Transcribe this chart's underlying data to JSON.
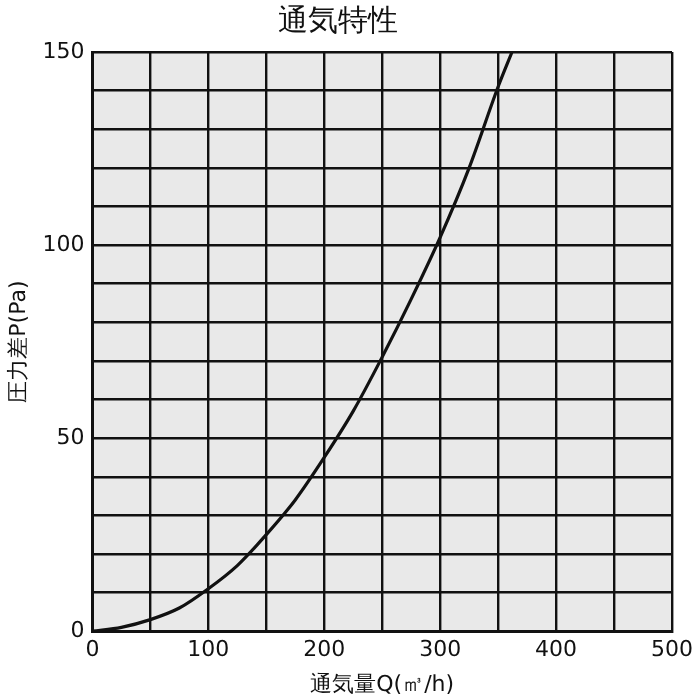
{
  "chart_data": {
    "type": "line",
    "title": "通気特性",
    "xlabel": "通気量Q(㎥/h)",
    "ylabel": "圧力差P(Pa)",
    "x": [
      0,
      25,
      50,
      75,
      100,
      125,
      150,
      175,
      200,
      225,
      250,
      275,
      300,
      325,
      350,
      362
    ],
    "series": [
      {
        "color": "#111111",
        "values": [
          0,
          1,
          3,
          6,
          11,
          17,
          25,
          34,
          45,
          57,
          71,
          86,
          102,
          120,
          141,
          150
        ]
      }
    ],
    "xlim": [
      0,
      500
    ],
    "xticks": [
      0,
      {
        "value": 50,
        "label": null
      },
      100,
      {
        "value": 150,
        "label": null
      },
      200,
      {
        "value": 250,
        "label": null
      },
      300,
      {
        "value": 350,
        "label": null
      },
      400,
      {
        "value": 450,
        "label": null
      },
      500
    ],
    "ylim": [
      0,
      150
    ],
    "yticks": [
      0,
      {
        "value": 10,
        "label": null
      },
      {
        "value": 20,
        "label": null
      },
      {
        "value": 30,
        "label": null
      },
      {
        "value": 40,
        "label": null
      },
      50,
      {
        "value": 60,
        "label": null
      },
      {
        "value": 70,
        "label": null
      },
      {
        "value": 80,
        "label": null
      },
      {
        "value": 90,
        "label": null
      },
      100,
      {
        "value": 110,
        "label": null
      },
      {
        "value": 120,
        "label": null
      },
      {
        "value": 130,
        "label": null
      },
      {
        "value": 140,
        "label": null
      },
      150
    ],
    "grid": true,
    "marker": "none",
    "line_style": "solid",
    "legend": false
  }
}
